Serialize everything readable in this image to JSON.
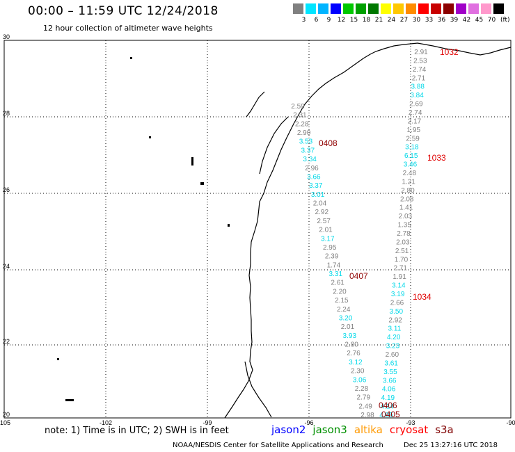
{
  "header": {
    "title": "00:00 – 11:59 UTC 12/24/2018",
    "subtitle": "12 hour collection of altimeter wave heights"
  },
  "color_scale": {
    "colors": [
      "#808080",
      "#00e5ff",
      "#00b4ff",
      "#0000ff",
      "#00c800",
      "#00a000",
      "#007800",
      "#ffff00",
      "#ffc800",
      "#ff8c00",
      "#ff0000",
      "#c80000",
      "#8c0000",
      "#a000c8",
      "#e070e0",
      "#ff99cc",
      "#000000"
    ],
    "labels": [
      "3",
      "6",
      "9",
      "12",
      "15",
      "18",
      "21",
      "24",
      "27",
      "30",
      "33",
      "36",
      "39",
      "42",
      "45",
      "70"
    ],
    "units": "(ft)"
  },
  "axes": {
    "lat_labels": [
      "30",
      "28",
      "26",
      "24",
      "22",
      "20"
    ],
    "lon_labels": [
      "-105",
      "-102",
      "-99",
      "-96",
      "-93",
      "-90"
    ]
  },
  "tracks": [
    {
      "satellite": "jason2",
      "values": [
        {
          "text": "2.59",
          "color": "#808080"
        },
        {
          "text": "2.31",
          "color": "#808080"
        },
        {
          "text": "2.28",
          "color": "#808080"
        },
        {
          "text": "2.90",
          "color": "#808080"
        },
        {
          "text": "3.53",
          "color": "#00d8e8"
        },
        {
          "text": "3.37",
          "color": "#00d8e8"
        },
        {
          "text": "3.34",
          "color": "#00d8e8"
        },
        {
          "text": "2.96",
          "color": "#808080"
        },
        {
          "text": "3.66",
          "color": "#00d8e8"
        },
        {
          "text": "3.37",
          "color": "#00d8e8"
        },
        {
          "text": "3.01",
          "color": "#00d8e8"
        },
        {
          "text": "2.04",
          "color": "#808080"
        },
        {
          "text": "2.92",
          "color": "#808080"
        },
        {
          "text": "2.57",
          "color": "#808080"
        },
        {
          "text": "2.01",
          "color": "#808080"
        },
        {
          "text": "3.17",
          "color": "#00d8e8"
        },
        {
          "text": "2.95",
          "color": "#808080"
        },
        {
          "text": "2.39",
          "color": "#808080"
        },
        {
          "text": "1.74",
          "color": "#808080"
        },
        {
          "text": "3.31",
          "color": "#00d8e8"
        },
        {
          "text": "2.61",
          "color": "#808080"
        },
        {
          "text": "2.20",
          "color": "#808080"
        },
        {
          "text": "2.15",
          "color": "#808080"
        },
        {
          "text": "2.24",
          "color": "#808080"
        },
        {
          "text": "3.20",
          "color": "#00d8e8"
        },
        {
          "text": "2.01",
          "color": "#808080"
        },
        {
          "text": "3.93",
          "color": "#00d8e8"
        },
        {
          "text": "2.80",
          "color": "#808080"
        },
        {
          "text": "2.76",
          "color": "#808080"
        },
        {
          "text": "3.12",
          "color": "#00d8e8"
        },
        {
          "text": "2.30",
          "color": "#808080"
        },
        {
          "text": "3.06",
          "color": "#00d8e8"
        },
        {
          "text": "2.28",
          "color": "#808080"
        },
        {
          "text": "2.79",
          "color": "#808080"
        },
        {
          "text": "2.49",
          "color": "#808080"
        },
        {
          "text": "2.98",
          "color": "#808080"
        }
      ]
    },
    {
      "satellite": "cryosat",
      "values": [
        {
          "text": "2.91",
          "color": "#808080"
        },
        {
          "text": "2.53",
          "color": "#808080"
        },
        {
          "text": "2.74",
          "color": "#808080"
        },
        {
          "text": "2.71",
          "color": "#808080"
        },
        {
          "text": "3.88",
          "color": "#00d8e8"
        },
        {
          "text": "3.84",
          "color": "#00d8e8"
        },
        {
          "text": "2.69",
          "color": "#808080"
        },
        {
          "text": "2.74",
          "color": "#808080"
        },
        {
          "text": "2.17",
          "color": "#808080"
        },
        {
          "text": "1.95",
          "color": "#808080"
        },
        {
          "text": "2.59",
          "color": "#808080"
        },
        {
          "text": "3.18",
          "color": "#00d8e8"
        },
        {
          "text": "6.15",
          "color": "#00d8e8"
        },
        {
          "text": "3.46",
          "color": "#00d8e8"
        },
        {
          "text": "2.48",
          "color": "#808080"
        },
        {
          "text": "1.21",
          "color": "#808080"
        },
        {
          "text": "2.80",
          "color": "#808080"
        },
        {
          "text": "2.08",
          "color": "#808080"
        },
        {
          "text": "1.41",
          "color": "#808080"
        },
        {
          "text": "2.03",
          "color": "#808080"
        },
        {
          "text": "1.35",
          "color": "#808080"
        },
        {
          "text": "2.78",
          "color": "#808080"
        },
        {
          "text": "2.03",
          "color": "#808080"
        },
        {
          "text": "2.51",
          "color": "#808080"
        },
        {
          "text": "1.70",
          "color": "#808080"
        },
        {
          "text": "2.71",
          "color": "#808080"
        },
        {
          "text": "1.91",
          "color": "#808080"
        },
        {
          "text": "3.14",
          "color": "#00d8e8"
        },
        {
          "text": "3.19",
          "color": "#00d8e8"
        },
        {
          "text": "2.66",
          "color": "#808080"
        },
        {
          "text": "3.50",
          "color": "#00d8e8"
        },
        {
          "text": "2.92",
          "color": "#808080"
        },
        {
          "text": "3.11",
          "color": "#00d8e8"
        },
        {
          "text": "4.20",
          "color": "#00d8e8"
        },
        {
          "text": "3.23",
          "color": "#00d8e8"
        },
        {
          "text": "2.60",
          "color": "#808080"
        },
        {
          "text": "3.61",
          "color": "#00d8e8"
        },
        {
          "text": "3.55",
          "color": "#00d8e8"
        },
        {
          "text": "3.66",
          "color": "#00d8e8"
        },
        {
          "text": "4.06",
          "color": "#00d8e8"
        },
        {
          "text": "4.19",
          "color": "#00d8e8"
        },
        {
          "text": "4.14",
          "color": "#00d8e8"
        },
        {
          "text": "4.05",
          "color": "#00d8e8"
        }
      ]
    }
  ],
  "time_labels": [
    {
      "text": "1032",
      "color": "#e00000"
    },
    {
      "text": "0408",
      "color": "#900000"
    },
    {
      "text": "1033",
      "color": "#e00000"
    },
    {
      "text": "0407",
      "color": "#900000"
    },
    {
      "text": "1034",
      "color": "#e00000"
    },
    {
      "text": "0406",
      "color": "#900000"
    },
    {
      "text": "0405",
      "color": "#900000"
    }
  ],
  "footer": {
    "note": "note: 1) Time is in UTC; 2) SWH is in feet",
    "legend": [
      {
        "name": "jason2",
        "color": "#0000ff"
      },
      {
        "name": "jason3",
        "color": "#009000"
      },
      {
        "name": "altika",
        "color": "#ff9900"
      },
      {
        "name": "cryosat",
        "color": "#ff0000"
      },
      {
        "name": "s3a",
        "color": "#800000"
      }
    ],
    "credit": "NOAA/NESDIS Center for Satellite Applications and Research",
    "generated": "Dec 25 13:27:16 UTC 2018"
  }
}
